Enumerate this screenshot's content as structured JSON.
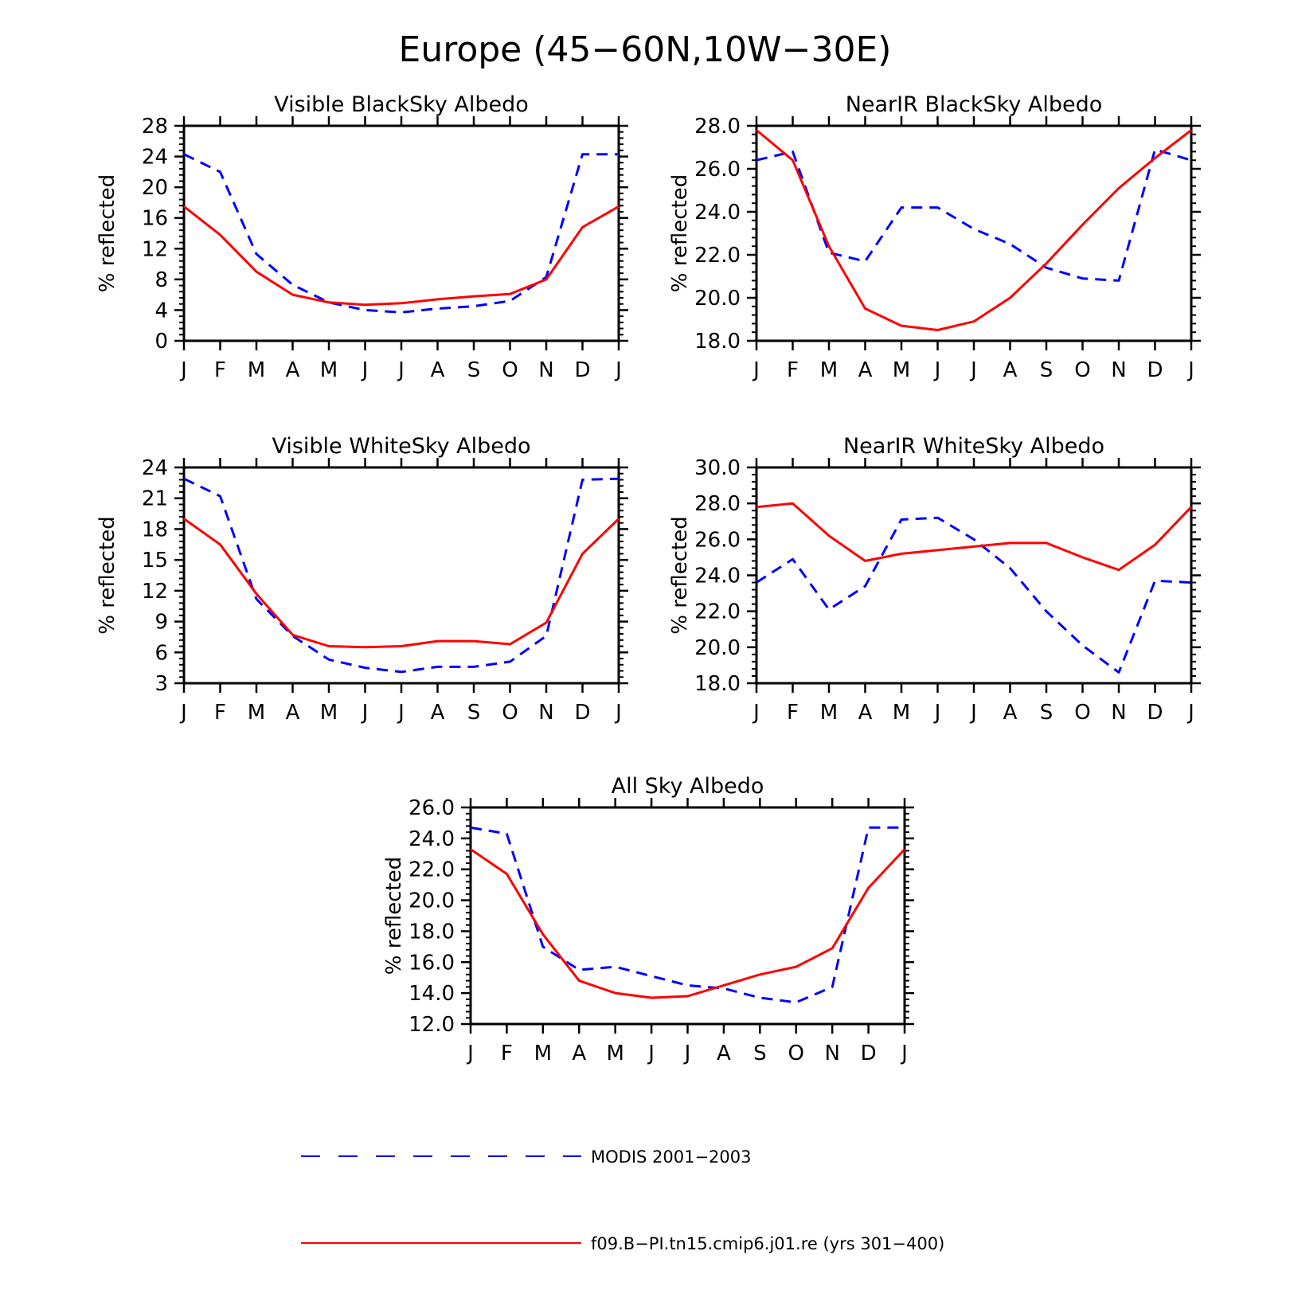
{
  "figure_title": "Europe (45−60N,10W−30E)",
  "colors": {
    "modis": "#0000ff",
    "model": "#ff0000",
    "axes": "#000000"
  },
  "legend": {
    "entries": [
      {
        "series": "modis",
        "label": "MODIS 2001−2003",
        "style": "dashed"
      },
      {
        "series": "model",
        "label": "f09.B−PI.tn15.cmip6.j01.re (yrs 301−400)",
        "style": "solid"
      }
    ]
  },
  "chart_data": [
    {
      "id": "vis_black",
      "type": "line",
      "title": "Visible BlackSky Albedo",
      "ylabel": "% reflected",
      "xlabel": "",
      "x": [
        "J",
        "F",
        "M",
        "A",
        "M",
        "J",
        "J",
        "A",
        "S",
        "O",
        "N",
        "D",
        "J"
      ],
      "ylim": [
        0,
        28
      ],
      "yticks": [
        "0",
        "4",
        "8",
        "12",
        "16",
        "20",
        "24",
        "28"
      ],
      "series": [
        {
          "name": "MODIS 2001−2003",
          "key": "modis",
          "values": [
            24.3,
            22.0,
            11.3,
            7.3,
            5.0,
            4.0,
            3.7,
            4.2,
            4.5,
            5.2,
            8.3,
            24.3,
            24.3
          ]
        },
        {
          "name": "f09.B−PI.tn15.cmip6.j01.re (yrs 301−400)",
          "key": "model",
          "values": [
            17.5,
            13.8,
            9.0,
            6.0,
            5.0,
            4.7,
            4.9,
            5.4,
            5.8,
            6.1,
            8.0,
            14.8,
            17.5
          ]
        }
      ]
    },
    {
      "id": "nir_black",
      "type": "line",
      "title": "NearIR BlackSky Albedo",
      "ylabel": "% reflected",
      "xlabel": "",
      "x": [
        "J",
        "F",
        "M",
        "A",
        "M",
        "J",
        "J",
        "A",
        "S",
        "O",
        "N",
        "D",
        "J"
      ],
      "ylim": [
        18,
        28
      ],
      "yticks": [
        "18.0",
        "20.0",
        "22.0",
        "24.0",
        "26.0",
        "28.0"
      ],
      "series": [
        {
          "name": "MODIS 2001−2003",
          "key": "modis",
          "values": [
            26.4,
            26.8,
            22.1,
            21.7,
            24.2,
            24.2,
            23.2,
            22.5,
            21.4,
            20.9,
            20.8,
            26.9,
            26.4
          ]
        },
        {
          "name": "f09.B−PI.tn15.cmip6.j01.re (yrs 301−400)",
          "key": "model",
          "values": [
            27.8,
            26.4,
            22.4,
            19.5,
            18.7,
            18.5,
            18.9,
            20.0,
            21.6,
            23.4,
            25.1,
            26.5,
            27.8
          ]
        }
      ]
    },
    {
      "id": "vis_white",
      "type": "line",
      "title": "Visible WhiteSky Albedo",
      "ylabel": "% reflected",
      "xlabel": "",
      "x": [
        "J",
        "F",
        "M",
        "A",
        "M",
        "J",
        "J",
        "A",
        "S",
        "O",
        "N",
        "D",
        "J"
      ],
      "ylim": [
        3,
        24
      ],
      "yticks": [
        "3",
        "6",
        "9",
        "12",
        "15",
        "18",
        "21",
        "24"
      ],
      "series": [
        {
          "name": "MODIS 2001−2003",
          "key": "modis",
          "values": [
            22.9,
            21.2,
            11.2,
            7.6,
            5.3,
            4.5,
            4.1,
            4.6,
            4.6,
            5.1,
            7.6,
            22.8,
            22.9
          ]
        },
        {
          "name": "f09.B−PI.tn15.cmip6.j01.re (yrs 301−400)",
          "key": "model",
          "values": [
            19.0,
            16.5,
            11.7,
            7.7,
            6.6,
            6.5,
            6.6,
            7.1,
            7.1,
            6.8,
            8.9,
            15.6,
            19.0
          ]
        }
      ]
    },
    {
      "id": "nir_white",
      "type": "line",
      "title": "NearIR WhiteSky Albedo",
      "ylabel": "% reflected",
      "xlabel": "",
      "x": [
        "J",
        "F",
        "M",
        "A",
        "M",
        "J",
        "J",
        "A",
        "S",
        "O",
        "N",
        "D",
        "J"
      ],
      "ylim": [
        18,
        30
      ],
      "yticks": [
        "18.0",
        "20.0",
        "22.0",
        "24.0",
        "26.0",
        "28.0",
        "30.0"
      ],
      "series": [
        {
          "name": "MODIS 2001−2003",
          "key": "modis",
          "values": [
            23.6,
            24.9,
            22.1,
            23.4,
            27.1,
            27.2,
            26.0,
            24.4,
            22.0,
            20.1,
            18.6,
            23.7,
            23.6
          ]
        },
        {
          "name": "f09.B−PI.tn15.cmip6.j01.re (yrs 301−400)",
          "key": "model",
          "values": [
            27.8,
            28.0,
            26.2,
            24.8,
            25.2,
            25.4,
            25.6,
            25.8,
            25.8,
            25.0,
            24.3,
            25.7,
            27.8
          ]
        }
      ]
    },
    {
      "id": "all_sky",
      "type": "line",
      "title": "All Sky Albedo",
      "ylabel": "% reflected",
      "xlabel": "",
      "x": [
        "J",
        "F",
        "M",
        "A",
        "M",
        "J",
        "J",
        "A",
        "S",
        "O",
        "N",
        "D",
        "J"
      ],
      "ylim": [
        12,
        26
      ],
      "yticks": [
        "12.0",
        "14.0",
        "16.0",
        "18.0",
        "20.0",
        "22.0",
        "24.0",
        "26.0"
      ],
      "series": [
        {
          "name": "MODIS 2001−2003",
          "key": "modis",
          "values": [
            24.7,
            24.3,
            17.0,
            15.5,
            15.7,
            15.1,
            14.5,
            14.3,
            13.7,
            13.4,
            14.4,
            24.7,
            24.7
          ]
        },
        {
          "name": "f09.B−PI.tn15.cmip6.j01.re (yrs 301−400)",
          "key": "model",
          "values": [
            23.3,
            21.7,
            17.8,
            14.8,
            14.0,
            13.7,
            13.8,
            14.5,
            15.2,
            15.7,
            16.9,
            20.8,
            23.3
          ]
        }
      ]
    }
  ]
}
